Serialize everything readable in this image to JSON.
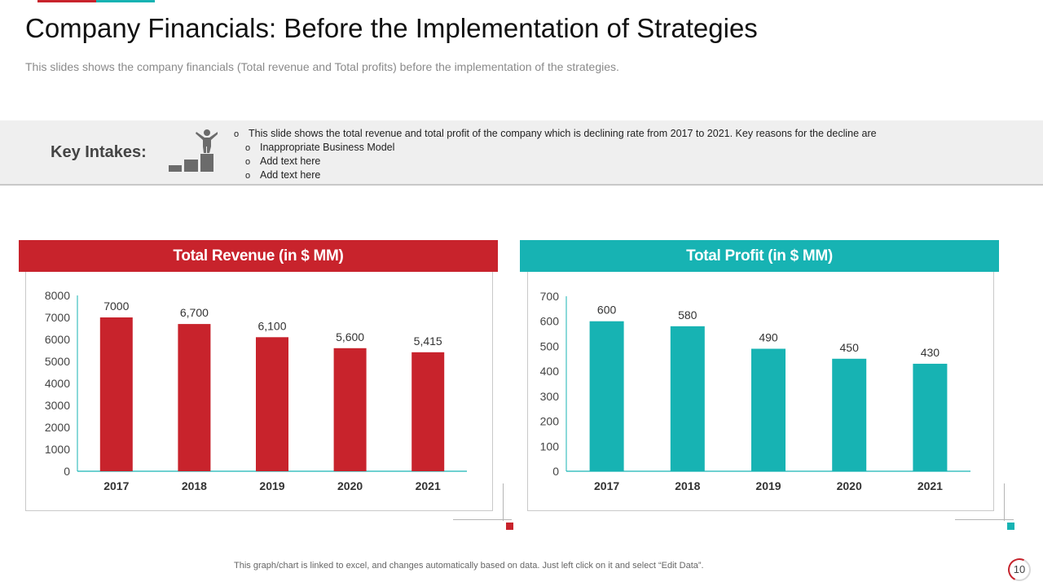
{
  "slide": {
    "title": "Company Financials: Before the Implementation of Strategies",
    "subtitle": "This slides shows the company financials (Total revenue and Total profits) before the implementation of the strategies.",
    "page_number": "10",
    "footer_note": "This graph/chart is linked to excel, and changes automatically based on data. Just left click on it and select “Edit Data”."
  },
  "key_intakes": {
    "label": "Key Intakes:",
    "icon": "podium-winner-icon",
    "bullet_glyph": "o",
    "main_point": "This slide shows the total revenue  and total profit of the company which is declining rate from 2017 to 2021. Key reasons for the decline are",
    "sub_points": [
      "Inappropriate  Business Model",
      "Add text here",
      "Add text here"
    ]
  },
  "colors": {
    "accent_red": "#c8232c",
    "accent_teal": "#17b3b3",
    "axis_line": "#17b3b3",
    "band_grey": "#efefef"
  },
  "chart_data": [
    {
      "type": "bar",
      "title": "Total Revenue (in $ MM)",
      "categories": [
        "2017",
        "2018",
        "2019",
        "2020",
        "2021"
      ],
      "values": [
        7000,
        6700,
        6100,
        5600,
        5415
      ],
      "value_labels": [
        "7000",
        "6,700",
        "6,100",
        "5,600",
        "5,415"
      ],
      "ylim": [
        0,
        8000
      ],
      "yticks": [
        0,
        1000,
        2000,
        3000,
        4000,
        5000,
        6000,
        7000,
        8000
      ],
      "xlabel": "",
      "ylabel": "",
      "bar_color": "#c8232c"
    },
    {
      "type": "bar",
      "title": "Total Profit (in $ MM)",
      "categories": [
        "2017",
        "2018",
        "2019",
        "2020",
        "2021"
      ],
      "values": [
        600,
        580,
        490,
        450,
        430
      ],
      "value_labels": [
        "600",
        "580",
        "490",
        "450",
        "430"
      ],
      "ylim": [
        0,
        700
      ],
      "yticks": [
        0,
        100,
        200,
        300,
        400,
        500,
        600,
        700
      ],
      "xlabel": "",
      "ylabel": "",
      "bar_color": "#17b3b3"
    }
  ]
}
